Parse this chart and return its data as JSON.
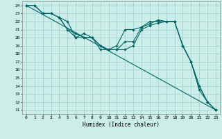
{
  "title": "",
  "xlabel": "Humidex (Indice chaleur)",
  "ylabel": "",
  "xlim": [
    -0.5,
    23.5
  ],
  "ylim": [
    10.5,
    24.5
  ],
  "xticks": [
    0,
    1,
    2,
    3,
    4,
    5,
    6,
    7,
    8,
    9,
    10,
    11,
    12,
    13,
    14,
    15,
    16,
    17,
    18,
    19,
    20,
    21,
    22,
    23
  ],
  "yticks": [
    11,
    12,
    13,
    14,
    15,
    16,
    17,
    18,
    19,
    20,
    21,
    22,
    23,
    24
  ],
  "background_color": "#cceee8",
  "grid_color": "#99cccc",
  "line_color": "#006666",
  "lines": [
    {
      "x": [
        0,
        23
      ],
      "y": [
        24,
        11
      ]
    },
    {
      "x": [
        0,
        1,
        2,
        3,
        4,
        5,
        6,
        7,
        8,
        9,
        10,
        11,
        12,
        13,
        14,
        15,
        16,
        17,
        18,
        19,
        20,
        21,
        22,
        23
      ],
      "y": [
        24,
        24,
        23,
        23,
        22.5,
        21,
        20,
        20,
        20,
        19,
        18.5,
        19,
        21,
        21,
        21.3,
        22,
        22,
        22,
        22,
        19,
        17,
        14,
        12,
        11
      ]
    },
    {
      "x": [
        0,
        1,
        2,
        3,
        4,
        5,
        6,
        7,
        8,
        9,
        10,
        11,
        12,
        13,
        14,
        15,
        16,
        17,
        18,
        19,
        20,
        21,
        22,
        23
      ],
      "y": [
        24,
        24,
        23,
        23,
        22.5,
        21,
        20.5,
        20,
        20,
        18.5,
        18.5,
        18.5,
        19.5,
        19.5,
        21.3,
        21.7,
        22.2,
        22,
        22,
        19,
        17,
        13.5,
        12,
        11
      ]
    },
    {
      "x": [
        4,
        5,
        6,
        7,
        8,
        9,
        10,
        11,
        12,
        13,
        14,
        15,
        16,
        17,
        18,
        19,
        20,
        21,
        22,
        23
      ],
      "y": [
        22.5,
        22,
        20,
        20.5,
        20,
        19,
        18.5,
        18.5,
        18.5,
        19,
        21,
        21.5,
        21.8,
        22,
        22,
        19,
        17,
        14,
        12,
        11
      ]
    }
  ]
}
